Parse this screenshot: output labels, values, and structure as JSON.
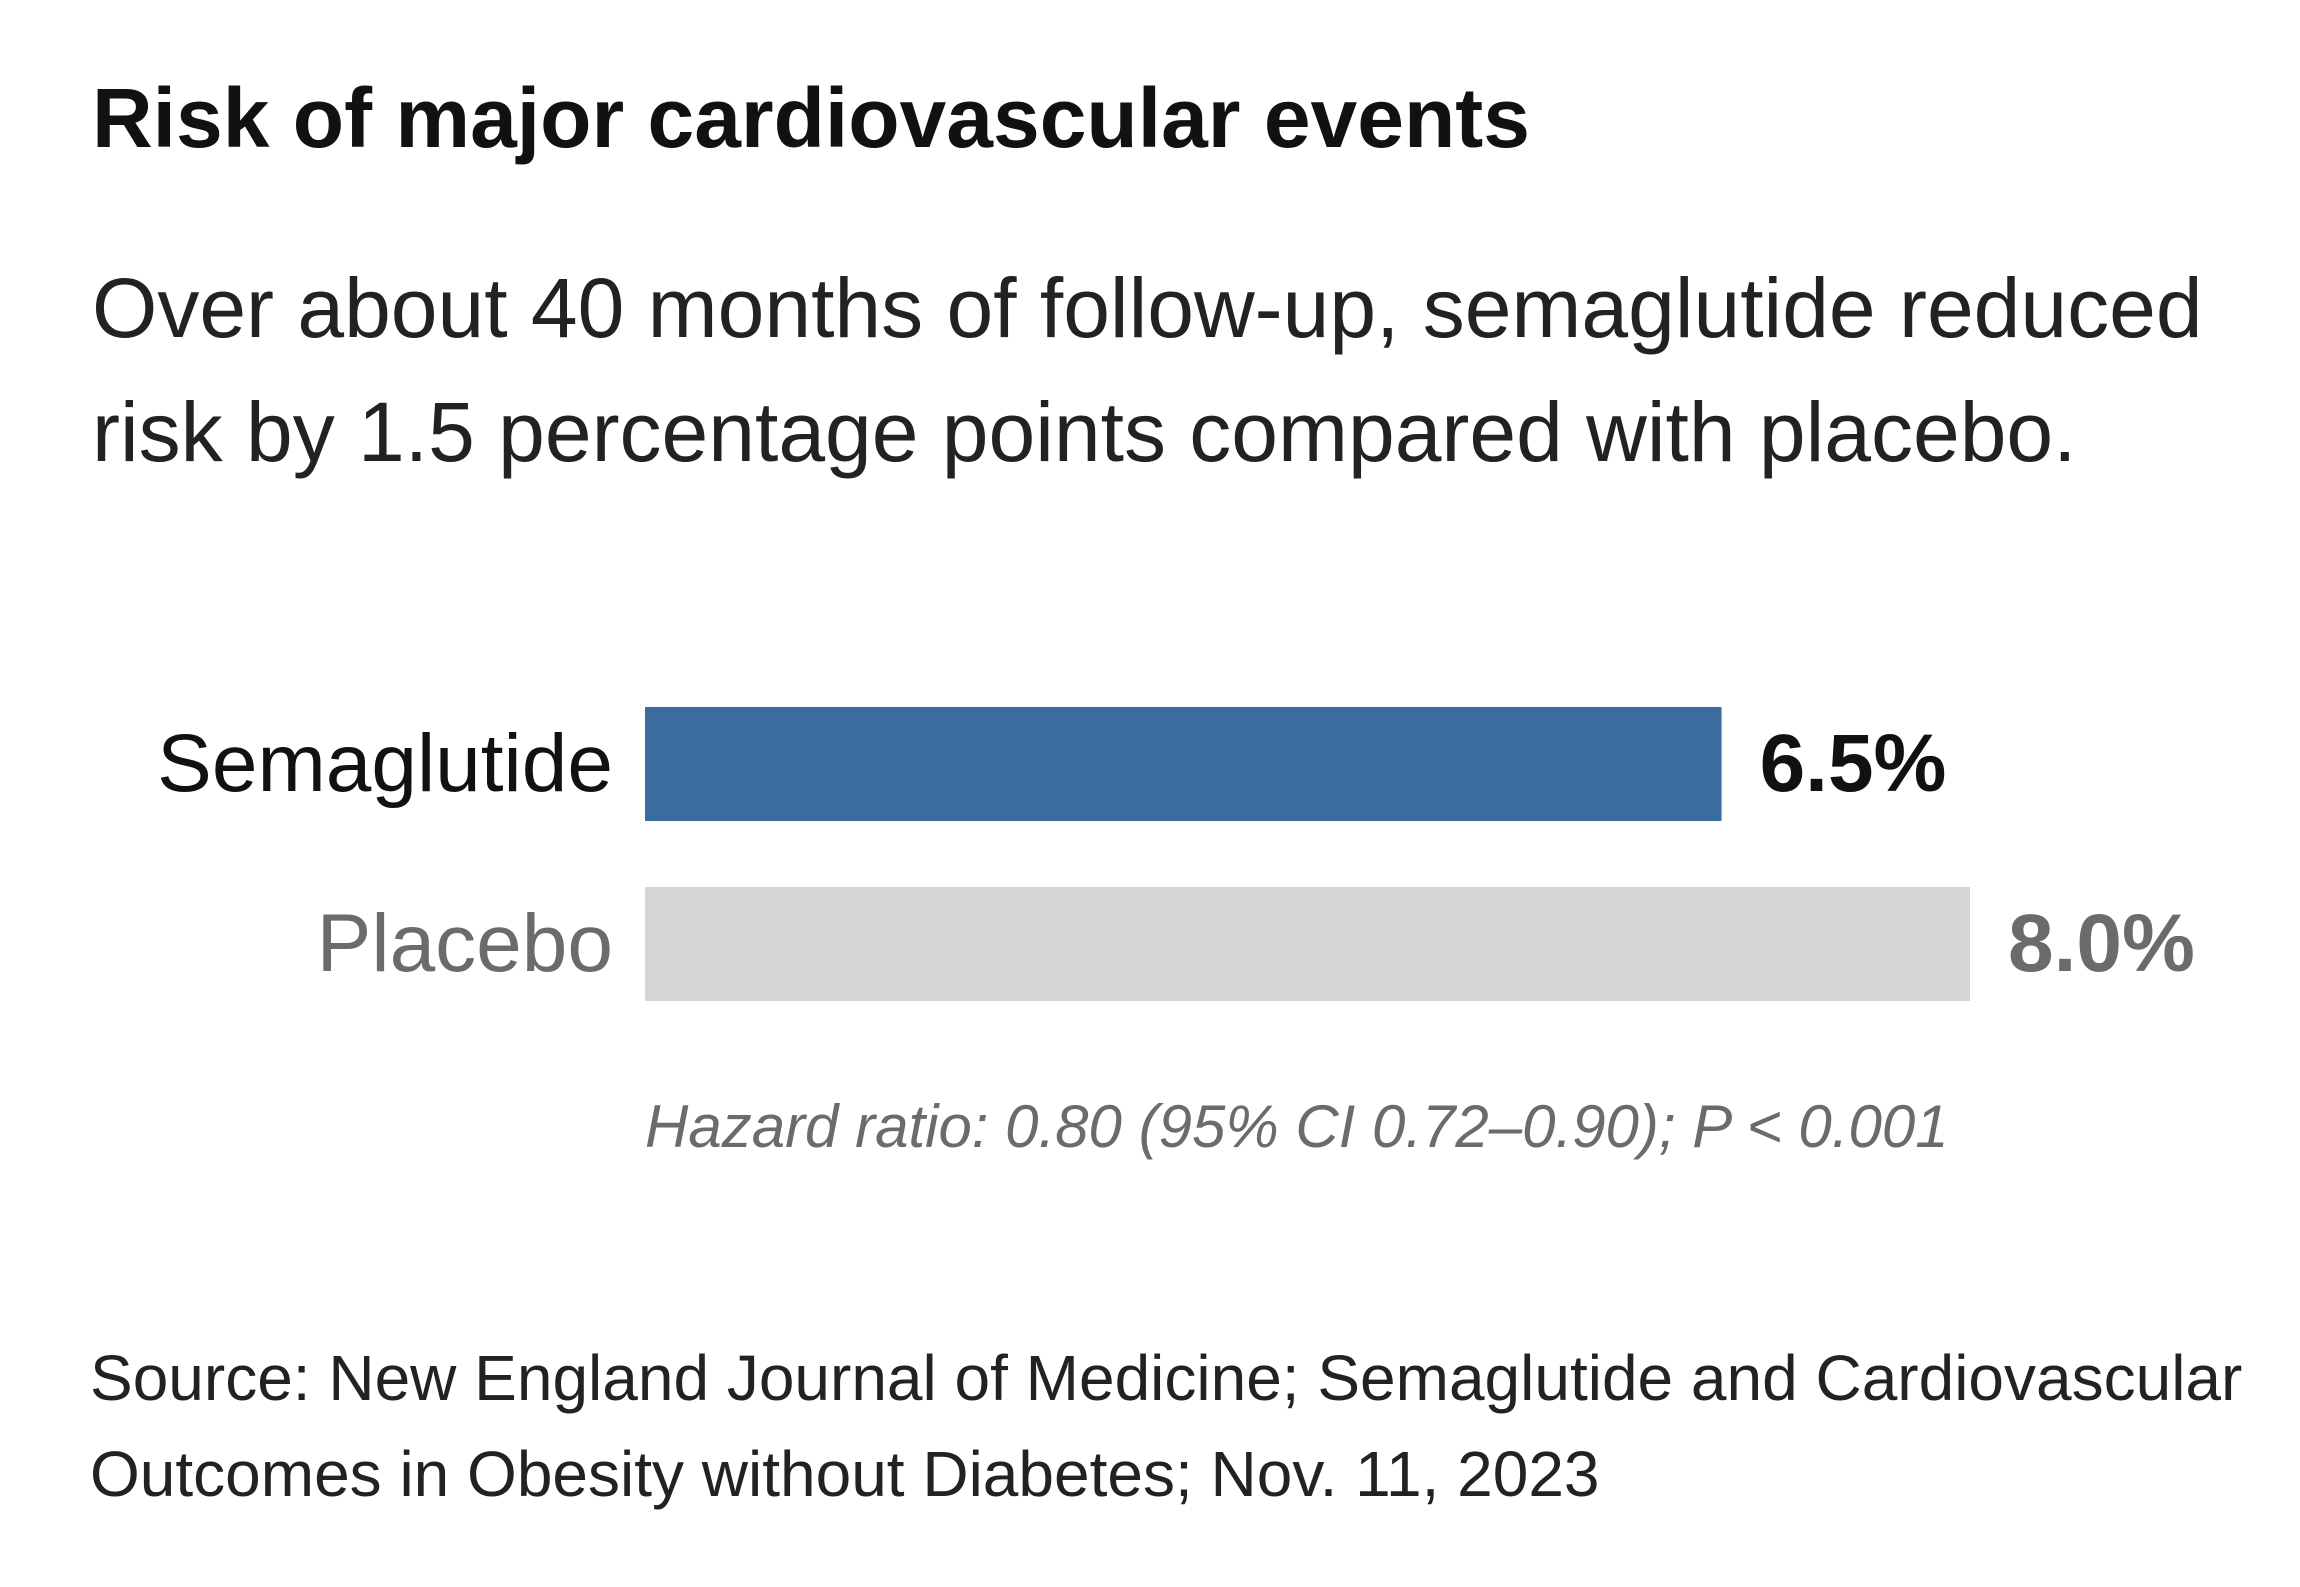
{
  "title": "Risk of major cardiovascular events",
  "subtitle": "Over about 40 months of follow-up, semaglutide reduced risk by 1.5 percentage points compared with placebo.",
  "source": "Source: New England Journal of Medicine; Semaglutide and Cardiovascular Outcomes in Obesity without Diabetes; Nov. 11, 2023",
  "colors": {
    "semaglutide": "#3a6ca0",
    "placebo": "#d4d5d7",
    "semaglutide_label": "#111111",
    "placebo_label": "#6b6b6e"
  },
  "chart_data": {
    "type": "bar",
    "orientation": "horizontal",
    "categories": [
      "Semaglutide",
      "Placebo"
    ],
    "values": [
      6.5,
      8.0
    ],
    "value_labels": [
      "6.5%",
      "8.0%"
    ],
    "xlim": [
      0,
      8.0
    ],
    "grid": false,
    "annotation": "Hazard ratio: 0.80 (95% CI 0.72–0.90); P < 0.001"
  }
}
